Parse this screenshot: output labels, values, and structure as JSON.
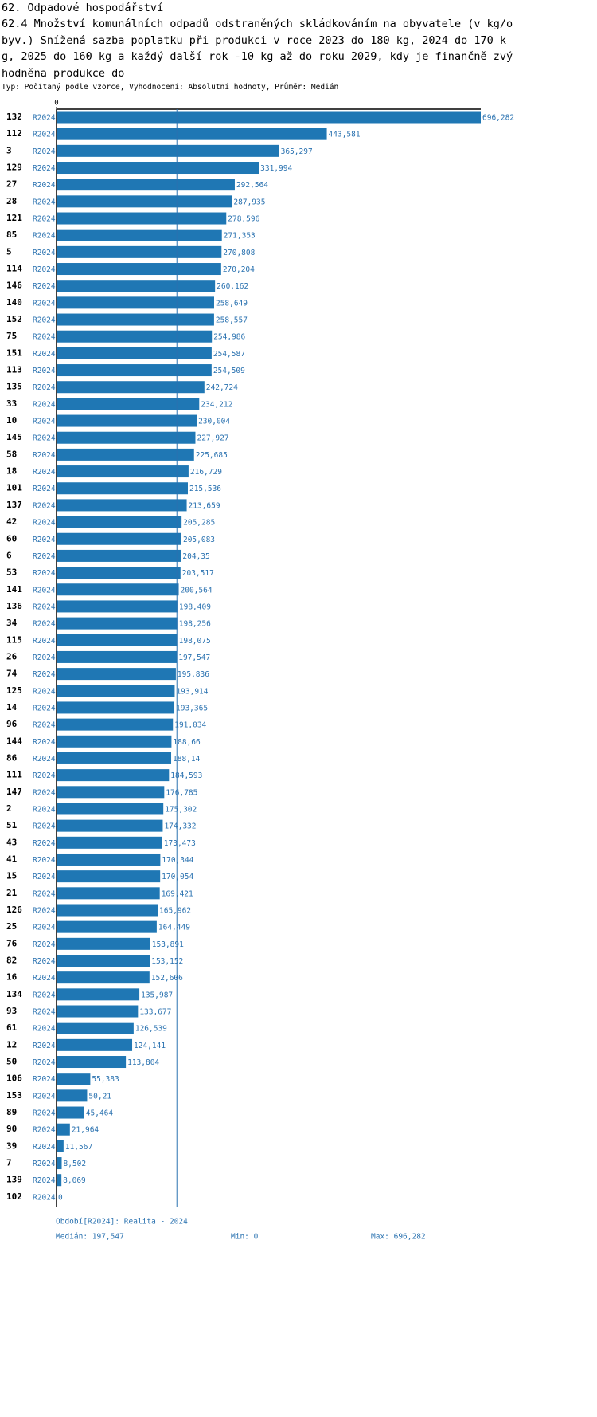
{
  "chart_data": {
    "type": "barh",
    "title": "62. Odpadové hospodářství",
    "subtitle": "62.4 Množství komunálních odpadů odstraněných skládkováním na obyvatele (v kg/obyv.) Snížená sazba poplatku při produkci v roce 2023 do 180 kg, 2024 do 170 kg, 2025 do 160 kg a každý další rok -10 kg až do roku 2029, kdy je finančně zvýhodněna produkce do",
    "description": "Typ: Počítaný podle vzorce, Vyhodnocení: Absolutní hodnoty, Průměr: Medián",
    "categories": [
      "132",
      "112",
      "3",
      "129",
      "27",
      "28",
      "121",
      "85",
      "5",
      "114",
      "146",
      "140",
      "152",
      "75",
      "151",
      "113",
      "135",
      "33",
      "10",
      "145",
      "58",
      "18",
      "101",
      "137",
      "42",
      "60",
      "6",
      "53",
      "141",
      "136",
      "34",
      "115",
      "26",
      "74",
      "125",
      "14",
      "96",
      "144",
      "86",
      "111",
      "147",
      "2",
      "51",
      "43",
      "41",
      "15",
      "21",
      "126",
      "25",
      "76",
      "82",
      "16",
      "134",
      "93",
      "61",
      "12",
      "50",
      "106",
      "153",
      "89",
      "90",
      "39",
      "7",
      "139",
      "102"
    ],
    "series": [
      {
        "name": "R2024",
        "color": "#1f77b4",
        "values": [
          696.282,
          443.581,
          365.297,
          331.994,
          292.564,
          287.935,
          278.596,
          271.353,
          270.808,
          270.204,
          260.162,
          258.649,
          258.557,
          254.986,
          254.587,
          254.509,
          242.724,
          234.212,
          230.004,
          227.927,
          225.685,
          216.729,
          215.536,
          213.659,
          205.285,
          205.083,
          204.35,
          203.517,
          200.564,
          198.409,
          198.256,
          198.075,
          197.547,
          195.836,
          193.914,
          193.365,
          191.034,
          188.66,
          188.14,
          184.593,
          176.785,
          175.302,
          174.332,
          173.473,
          170.344,
          170.054,
          169.421,
          165.962,
          164.449,
          153.891,
          153.152,
          152.606,
          135.987,
          133.677,
          126.539,
          124.141,
          113.804,
          55.383,
          50.21,
          45.464,
          21.964,
          11.567,
          8.502,
          8.069,
          0
        ],
        "value_labels": [
          "696,282",
          "443,581",
          "365,297",
          "331,994",
          "292,564",
          "287,935",
          "278,596",
          "271,353",
          "270,808",
          "270,204",
          "260,162",
          "258,649",
          "258,557",
          "254,986",
          "254,587",
          "254,509",
          "242,724",
          "234,212",
          "230,004",
          "227,927",
          "225,685",
          "216,729",
          "215,536",
          "213,659",
          "205,285",
          "205,083",
          "204,35",
          "203,517",
          "200,564",
          "198,409",
          "198,256",
          "198,075",
          "197,547",
          "195,836",
          "193,914",
          "193,365",
          "191,034",
          "188,66",
          "188,14",
          "184,593",
          "176,785",
          "175,302",
          "174,332",
          "173,473",
          "170,344",
          "170,054",
          "169,421",
          "165,962",
          "164,449",
          "153,891",
          "153,152",
          "152,606",
          "135,987",
          "133,677",
          "126,539",
          "124,141",
          "113,804",
          "55,383",
          "50,21",
          "45,464",
          "21,964",
          "11,567",
          "8,502",
          "8,069",
          "0"
        ]
      }
    ],
    "xlim": [
      0,
      696.282
    ],
    "xticks": [
      0
    ],
    "median": {
      "value": 197.547,
      "label": "Medián: 197,547"
    },
    "footer_period": "Období[R2024]: Realita - 2024",
    "footer_min": "Min: 0",
    "footer_max": "Max: 696,282"
  }
}
